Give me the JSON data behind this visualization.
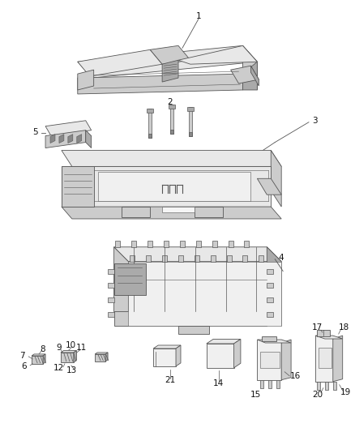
{
  "bg": "#ffffff",
  "lc": "#555555",
  "fc_light": "#e8e8e8",
  "fc_mid": "#cccccc",
  "fc_dark": "#aaaaaa",
  "fc_darker": "#888888",
  "lw": 0.6,
  "fs": 7.5
}
